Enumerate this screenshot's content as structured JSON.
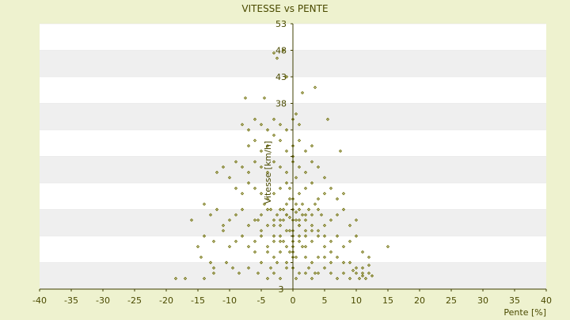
{
  "chart_data": {
    "type": "scatter",
    "title": "VITESSE vs PENTE",
    "xlabel": "Pente [%]",
    "ylabel": "Vitesse [km/h]",
    "xlim": [
      -40,
      40
    ],
    "ylim": [
      3,
      53
    ],
    "x_ticks": [
      -40,
      -35,
      -30,
      -25,
      -20,
      -15,
      -10,
      -5,
      0,
      5,
      10,
      15,
      20,
      25,
      30,
      35,
      40
    ],
    "y_ticks": [
      3,
      8,
      13,
      18,
      23,
      28,
      33,
      38,
      43,
      48,
      53
    ],
    "y_tick_labels_shown": [
      "3",
      "",
      "",
      "",
      "",
      "",
      "",
      "38",
      "43",
      "48",
      "53"
    ],
    "grid": "horizontal alternating bands",
    "colors": {
      "background": "#eef2cf",
      "plot_bg": "#ffffff",
      "band": "#efefef",
      "marker": "#6b6b00",
      "text": "#4a4a00",
      "axis": "#3f3f00"
    },
    "series": [
      {
        "marker": "diamond",
        "points": [
          [
            -18.5,
            5
          ],
          [
            -17,
            5
          ],
          [
            -14,
            5
          ],
          [
            -12.5,
            6
          ],
          [
            -12.5,
            7
          ],
          [
            -14.5,
            9
          ],
          [
            -13,
            8
          ],
          [
            -10.5,
            8
          ],
          [
            -9.5,
            7
          ],
          [
            -8.5,
            6
          ],
          [
            -7,
            7
          ],
          [
            -5.5,
            6
          ],
          [
            -4,
            5
          ],
          [
            -3,
            6
          ],
          [
            -2,
            5
          ],
          [
            -1,
            7
          ],
          [
            0.5,
            5
          ],
          [
            2,
            6
          ],
          [
            3,
            5
          ],
          [
            4,
            6
          ],
          [
            5,
            7
          ],
          [
            6,
            6
          ],
          [
            7,
            5
          ],
          [
            8,
            6
          ],
          [
            9,
            5
          ],
          [
            10,
            6
          ],
          [
            10.5,
            5
          ],
          [
            11,
            6
          ],
          [
            11.5,
            5
          ],
          [
            12,
            6
          ],
          [
            12.5,
            5.5
          ],
          [
            11,
            7
          ],
          [
            10,
            7
          ],
          [
            9,
            8
          ],
          [
            8,
            8
          ],
          [
            7,
            9
          ],
          [
            6,
            8
          ],
          [
            12,
            7.5
          ],
          [
            11,
            5.5
          ],
          [
            9.5,
            6.5
          ],
          [
            -15,
            11
          ],
          [
            -14,
            13
          ],
          [
            -12.5,
            12
          ],
          [
            -11,
            14
          ],
          [
            -10,
            11
          ],
          [
            -9,
            12
          ],
          [
            -8,
            13
          ],
          [
            -7,
            11
          ],
          [
            -6,
            12
          ],
          [
            -5,
            13
          ],
          [
            -4,
            11
          ],
          [
            -3,
            12
          ],
          [
            -2,
            13
          ],
          [
            -1,
            11
          ],
          [
            0,
            12
          ],
          [
            1,
            13
          ],
          [
            2,
            11
          ],
          [
            3,
            12
          ],
          [
            4,
            13
          ],
          [
            5,
            11
          ],
          [
            6,
            12
          ],
          [
            7,
            13
          ],
          [
            8,
            11
          ],
          [
            9,
            12
          ],
          [
            10,
            13
          ],
          [
            11,
            10
          ],
          [
            12,
            9
          ],
          [
            15,
            11
          ],
          [
            -16,
            16
          ],
          [
            -14,
            19
          ],
          [
            -13,
            17
          ],
          [
            -12,
            18
          ],
          [
            -11,
            15
          ],
          [
            -10,
            16
          ],
          [
            -9,
            17
          ],
          [
            -8,
            18
          ],
          [
            -7,
            15
          ],
          [
            -6,
            16
          ],
          [
            -5,
            17
          ],
          [
            -4,
            18
          ],
          [
            -3,
            15
          ],
          [
            -2,
            16
          ],
          [
            -1,
            17
          ],
          [
            0,
            18
          ],
          [
            1,
            15
          ],
          [
            2,
            16
          ],
          [
            3,
            17
          ],
          [
            4,
            18
          ],
          [
            5,
            15
          ],
          [
            6,
            16
          ],
          [
            7,
            17
          ],
          [
            8,
            18
          ],
          [
            9,
            15
          ],
          [
            10,
            16
          ],
          [
            -3,
            21
          ],
          [
            -2,
            22
          ],
          [
            -1,
            23
          ],
          [
            0,
            20
          ],
          [
            1,
            21
          ],
          [
            2,
            22
          ],
          [
            3,
            23
          ],
          [
            4,
            20
          ],
          [
            5,
            21
          ],
          [
            6,
            22
          ],
          [
            7,
            20
          ],
          [
            8,
            21
          ],
          [
            -4,
            20
          ],
          [
            -5,
            21
          ],
          [
            -6,
            22
          ],
          [
            -7,
            23
          ],
          [
            -8,
            21
          ],
          [
            -9,
            22
          ],
          [
            -10,
            24
          ],
          [
            -11,
            26
          ],
          [
            -12,
            25
          ],
          [
            -9,
            27
          ],
          [
            -8,
            26
          ],
          [
            -7,
            25
          ],
          [
            -6,
            27
          ],
          [
            -5,
            26
          ],
          [
            -4,
            25
          ],
          [
            -3,
            27
          ],
          [
            -2,
            26
          ],
          [
            -1,
            25
          ],
          [
            0,
            27
          ],
          [
            1,
            26
          ],
          [
            2,
            25
          ],
          [
            3,
            27
          ],
          [
            4,
            26
          ],
          [
            5,
            24
          ],
          [
            -7,
            30
          ],
          [
            -6,
            31
          ],
          [
            -5,
            29
          ],
          [
            -4,
            30
          ],
          [
            -3,
            32
          ],
          [
            -2,
            31
          ],
          [
            -1,
            29
          ],
          [
            0,
            30
          ],
          [
            1,
            31
          ],
          [
            2,
            29
          ],
          [
            3,
            30
          ],
          [
            7.5,
            29
          ],
          [
            -8,
            34
          ],
          [
            -7,
            33
          ],
          [
            -6,
            35
          ],
          [
            -5,
            34
          ],
          [
            -4,
            33
          ],
          [
            -3,
            35
          ],
          [
            -2,
            34
          ],
          [
            -1,
            33
          ],
          [
            0,
            35
          ],
          [
            1,
            34
          ],
          [
            0.5,
            36
          ],
          [
            5.5,
            35
          ],
          [
            -7.5,
            39
          ],
          [
            -4.5,
            39
          ],
          [
            1.5,
            40
          ],
          [
            3.5,
            41
          ],
          [
            -3,
            47.5
          ],
          [
            -2.5,
            46.5
          ],
          [
            -1.5,
            48
          ],
          [
            -1,
            43
          ],
          [
            0,
            28
          ],
          [
            0.5,
            24
          ],
          [
            -0.5,
            22
          ],
          [
            1.5,
            19
          ],
          [
            -1.5,
            18
          ],
          [
            0.5,
            16
          ],
          [
            -0.5,
            14
          ],
          [
            1,
            12
          ],
          [
            -2,
            10
          ],
          [
            2,
            9
          ],
          [
            -1,
            8
          ],
          [
            0,
            7
          ],
          [
            1,
            6
          ],
          [
            -3,
            9
          ],
          [
            3,
            8
          ],
          [
            -4,
            10
          ],
          [
            4,
            9
          ],
          [
            -5,
            8
          ],
          [
            5,
            9
          ],
          [
            -6,
            10
          ],
          [
            6,
            10
          ],
          [
            -0.5,
            20
          ],
          [
            0.5,
            19
          ],
          [
            -1,
            17
          ],
          [
            1,
            16
          ],
          [
            -2,
            15
          ],
          [
            2,
            14
          ],
          [
            -3,
            13
          ],
          [
            3,
            14
          ],
          [
            -1.5,
            12
          ],
          [
            1.5,
            11
          ],
          [
            -0.5,
            10
          ],
          [
            0.5,
            9
          ],
          [
            -2.5,
            8
          ],
          [
            2.5,
            7
          ],
          [
            -3.5,
            7
          ],
          [
            3.5,
            6
          ],
          [
            -1,
            19
          ],
          [
            1,
            18
          ],
          [
            -2,
            18
          ],
          [
            2,
            17
          ],
          [
            -3,
            16
          ],
          [
            3,
            15
          ],
          [
            -4,
            15
          ],
          [
            4,
            14
          ],
          [
            -5,
            14
          ],
          [
            5,
            13
          ],
          [
            -1,
            14
          ],
          [
            1,
            15
          ],
          [
            -2,
            12
          ],
          [
            2,
            13
          ],
          [
            0,
            16
          ],
          [
            0,
            14
          ],
          [
            0,
            13
          ],
          [
            0,
            11
          ],
          [
            0,
            10
          ],
          [
            0,
            9
          ],
          [
            -0.5,
            16.5
          ],
          [
            0.5,
            17.5
          ],
          [
            -1.5,
            16
          ],
          [
            1.5,
            17
          ],
          [
            -2.5,
            17
          ],
          [
            2.5,
            18
          ],
          [
            -3.5,
            18
          ],
          [
            3.5,
            19
          ],
          [
            -4.5,
            19
          ],
          [
            4.5,
            17
          ],
          [
            -5.5,
            16
          ]
        ]
      }
    ]
  }
}
